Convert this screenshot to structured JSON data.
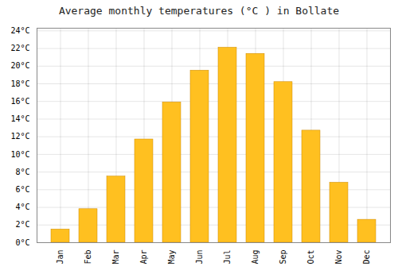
{
  "chart_data": {
    "type": "bar",
    "title": "Average monthly temperatures (°C ) in Bollate",
    "categories": [
      "Jan",
      "Feb",
      "Mar",
      "Apr",
      "May",
      "Jun",
      "Jul",
      "Aug",
      "Sep",
      "Oct",
      "Nov",
      "Dec"
    ],
    "values": [
      1.5,
      3.8,
      7.5,
      11.7,
      15.9,
      19.5,
      22.1,
      21.4,
      18.2,
      12.7,
      6.8,
      2.6
    ],
    "color": "#FFC020",
    "ylim": [
      0,
      24.3
    ],
    "yticks": [
      {
        "value": 0,
        "label": "0°C"
      },
      {
        "value": 2,
        "label": "2°C"
      },
      {
        "value": 4,
        "label": "4°C"
      },
      {
        "value": 6,
        "label": "6°C"
      },
      {
        "value": 8,
        "label": "8°C"
      },
      {
        "value": 10,
        "label": "10°C"
      },
      {
        "value": 12,
        "label": "12°C"
      },
      {
        "value": 14,
        "label": "14°C"
      },
      {
        "value": 16,
        "label": "16°C"
      },
      {
        "value": 18,
        "label": "18°C"
      },
      {
        "value": 20,
        "label": "20°C"
      },
      {
        "value": 22,
        "label": "22°C"
      },
      {
        "value": 24,
        "label": "24°C"
      }
    ],
    "grid": true
  }
}
